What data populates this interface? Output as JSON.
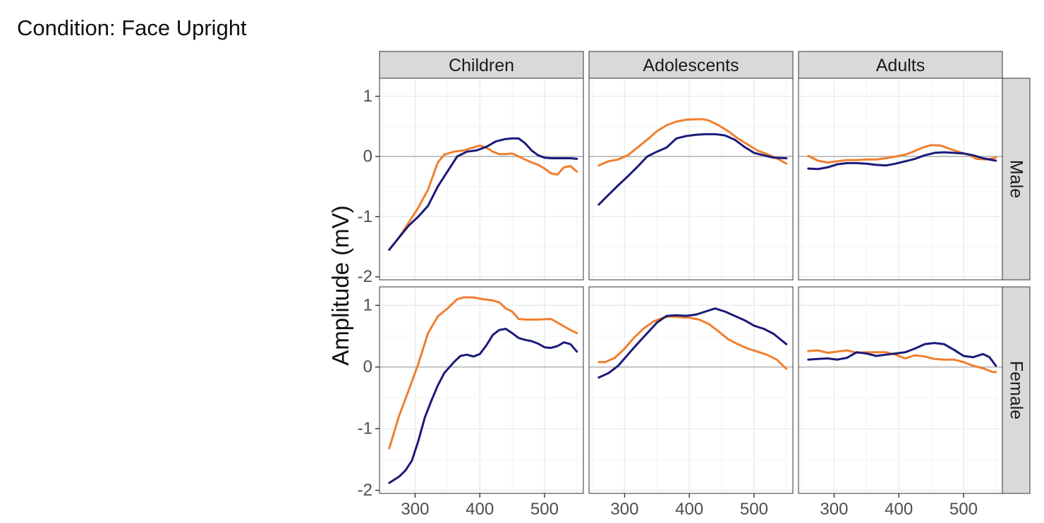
{
  "heading": "Condition: Face Upright",
  "chart_data": {
    "type": "line",
    "ylabel": "Amplitude (mV)",
    "xlabel": "",
    "columns": [
      "Children",
      "Adolescents",
      "Adults"
    ],
    "rows": [
      "Male",
      "Female"
    ],
    "xlim": [
      245,
      560
    ],
    "ylim": [
      -2.05,
      1.3
    ],
    "x_ticks": [
      300,
      400,
      500
    ],
    "y_ticks": [
      -2,
      -1,
      0,
      1
    ],
    "colors": {
      "series_orange": "#F07F2E",
      "series_navy": "#1A1A7A",
      "strip_bg": "#D9D9D9",
      "grid": "#EBEBEB"
    },
    "panels": [
      {
        "column": "Children",
        "row": "Male",
        "series": [
          {
            "color": "orange",
            "x": [
              260,
              275,
              290,
              305,
              320,
              335,
              345,
              360,
              375,
              390,
              400,
              410,
              420,
              430,
              440,
              450,
              460,
              470,
              480,
              490,
              500,
              510,
              520,
              530,
              540,
              550
            ],
            "y": [
              -1.55,
              -1.35,
              -1.1,
              -0.85,
              -0.55,
              -0.1,
              0.03,
              0.08,
              0.1,
              0.15,
              0.18,
              0.15,
              0.08,
              0.04,
              0.04,
              0.05,
              0.0,
              -0.05,
              -0.1,
              -0.14,
              -0.2,
              -0.28,
              -0.3,
              -0.18,
              -0.16,
              -0.25
            ]
          },
          {
            "color": "navy",
            "x": [
              260,
              275,
              290,
              305,
              320,
              335,
              350,
              365,
              380,
              395,
              410,
              425,
              440,
              450,
              460,
              470,
              480,
              490,
              500,
              510,
              520,
              530,
              540,
              550
            ],
            "y": [
              -1.55,
              -1.35,
              -1.15,
              -1.0,
              -0.82,
              -0.5,
              -0.25,
              0.0,
              0.08,
              0.1,
              0.16,
              0.25,
              0.29,
              0.3,
              0.3,
              0.22,
              0.1,
              0.02,
              -0.02,
              -0.03,
              -0.03,
              -0.03,
              -0.03,
              -0.04
            ]
          }
        ]
      },
      {
        "column": "Adolescents",
        "row": "Male",
        "series": [
          {
            "color": "orange",
            "x": [
              260,
              275,
              290,
              305,
              320,
              335,
              350,
              365,
              380,
              395,
              410,
              420,
              430,
              445,
              460,
              475,
              490,
              505,
              520,
              535,
              550
            ],
            "y": [
              -0.15,
              -0.08,
              -0.05,
              0.02,
              0.15,
              0.28,
              0.42,
              0.52,
              0.58,
              0.61,
              0.62,
              0.62,
              0.6,
              0.52,
              0.42,
              0.3,
              0.2,
              0.1,
              0.04,
              -0.03,
              -0.12
            ]
          },
          {
            "color": "navy",
            "x": [
              260,
              275,
              290,
              305,
              320,
              335,
              350,
              365,
              380,
              395,
              410,
              425,
              440,
              455,
              470,
              485,
              500,
              515,
              530,
              550
            ],
            "y": [
              -0.8,
              -0.64,
              -0.48,
              -0.33,
              -0.17,
              0.0,
              0.08,
              0.15,
              0.3,
              0.34,
              0.36,
              0.37,
              0.37,
              0.35,
              0.28,
              0.16,
              0.06,
              0.02,
              -0.02,
              -0.03
            ]
          }
        ]
      },
      {
        "column": "Adults",
        "row": "Male",
        "series": [
          {
            "color": "orange",
            "x": [
              260,
              275,
              290,
              305,
              320,
              335,
              350,
              365,
              380,
              395,
              410,
              420,
              435,
              450,
              465,
              480,
              495,
              510,
              520,
              535,
              550
            ],
            "y": [
              0.01,
              -0.07,
              -0.1,
              -0.08,
              -0.06,
              -0.06,
              -0.05,
              -0.05,
              -0.03,
              0.0,
              0.03,
              0.07,
              0.14,
              0.19,
              0.18,
              0.12,
              0.07,
              0.02,
              -0.04,
              -0.05,
              -0.02
            ]
          },
          {
            "color": "navy",
            "x": [
              260,
              275,
              290,
              305,
              320,
              335,
              350,
              365,
              380,
              395,
              410,
              425,
              440,
              455,
              470,
              485,
              500,
              515,
              530,
              550
            ],
            "y": [
              -0.2,
              -0.21,
              -0.18,
              -0.13,
              -0.11,
              -0.11,
              -0.12,
              -0.14,
              -0.15,
              -0.12,
              -0.08,
              -0.04,
              0.02,
              0.06,
              0.07,
              0.06,
              0.05,
              0.02,
              -0.03,
              -0.07
            ]
          }
        ]
      },
      {
        "column": "Children",
        "row": "Female",
        "series": [
          {
            "color": "orange",
            "x": [
              260,
              275,
              290,
              305,
              320,
              335,
              350,
              365,
              375,
              390,
              405,
              420,
              430,
              440,
              450,
              460,
              470,
              490,
              510,
              520,
              530,
              540,
              550
            ],
            "y": [
              -1.32,
              -0.8,
              -0.38,
              0.05,
              0.55,
              0.82,
              0.95,
              1.1,
              1.13,
              1.13,
              1.1,
              1.08,
              1.05,
              0.95,
              0.9,
              0.78,
              0.77,
              0.77,
              0.78,
              0.72,
              0.66,
              0.6,
              0.55
            ]
          },
          {
            "color": "navy",
            "x": [
              260,
              275,
              285,
              295,
              305,
              315,
              325,
              335,
              345,
              360,
              370,
              380,
              390,
              400,
              410,
              420,
              430,
              440,
              450,
              460,
              470,
              480,
              490,
              500,
              510,
              520,
              530,
              540,
              550
            ],
            "y": [
              -1.88,
              -1.78,
              -1.68,
              -1.52,
              -1.2,
              -0.82,
              -0.55,
              -0.3,
              -0.1,
              0.08,
              0.18,
              0.2,
              0.17,
              0.21,
              0.35,
              0.52,
              0.6,
              0.62,
              0.55,
              0.47,
              0.44,
              0.42,
              0.38,
              0.32,
              0.31,
              0.34,
              0.4,
              0.37,
              0.25
            ]
          }
        ]
      },
      {
        "column": "Adolescents",
        "row": "Female",
        "series": [
          {
            "color": "orange",
            "x": [
              260,
              270,
              285,
              300,
              315,
              330,
              345,
              360,
              370,
              385,
              400,
              415,
              430,
              445,
              460,
              475,
              490,
              505,
              520,
              535,
              550
            ],
            "y": [
              0.08,
              0.08,
              0.15,
              0.3,
              0.48,
              0.63,
              0.74,
              0.8,
              0.82,
              0.81,
              0.8,
              0.77,
              0.7,
              0.58,
              0.45,
              0.37,
              0.3,
              0.25,
              0.2,
              0.12,
              -0.03
            ]
          },
          {
            "color": "navy",
            "x": [
              260,
              275,
              290,
              305,
              320,
              335,
              350,
              365,
              380,
              395,
              410,
              425,
              440,
              455,
              470,
              485,
              500,
              515,
              530,
              550
            ],
            "y": [
              -0.17,
              -0.1,
              0.02,
              0.2,
              0.38,
              0.55,
              0.72,
              0.83,
              0.84,
              0.83,
              0.85,
              0.9,
              0.95,
              0.9,
              0.83,
              0.76,
              0.67,
              0.62,
              0.54,
              0.37
            ]
          }
        ]
      },
      {
        "column": "Adults",
        "row": "Female",
        "series": [
          {
            "color": "orange",
            "x": [
              260,
              275,
              290,
              305,
              320,
              335,
              350,
              365,
              380,
              395,
              410,
              425,
              440,
              455,
              470,
              485,
              500,
              515,
              530,
              545,
              550
            ],
            "y": [
              0.26,
              0.27,
              0.23,
              0.25,
              0.27,
              0.23,
              0.24,
              0.24,
              0.24,
              0.2,
              0.14,
              0.19,
              0.17,
              0.13,
              0.12,
              0.12,
              0.08,
              0.02,
              -0.02,
              -0.08,
              -0.08
            ]
          },
          {
            "color": "navy",
            "x": [
              260,
              275,
              290,
              305,
              320,
              335,
              350,
              365,
              380,
              395,
              410,
              425,
              440,
              455,
              470,
              485,
              500,
              515,
              530,
              540,
              550
            ],
            "y": [
              0.12,
              0.13,
              0.14,
              0.12,
              0.15,
              0.24,
              0.22,
              0.18,
              0.2,
              0.22,
              0.24,
              0.3,
              0.37,
              0.39,
              0.37,
              0.28,
              0.18,
              0.16,
              0.21,
              0.16,
              0.02
            ]
          }
        ]
      }
    ]
  }
}
